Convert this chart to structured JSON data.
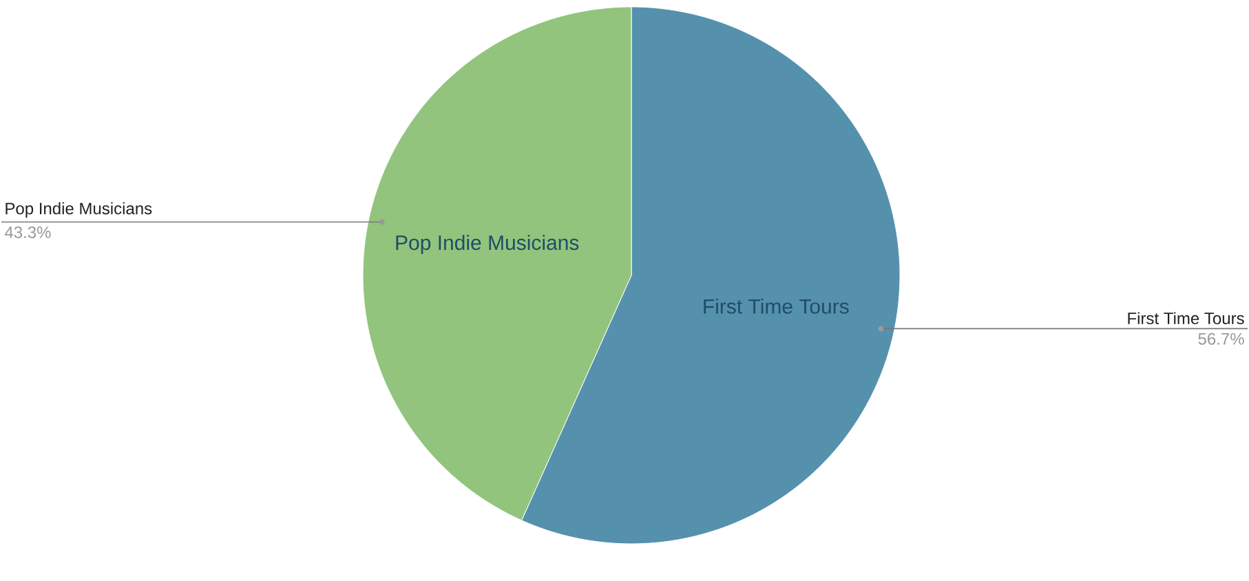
{
  "chart_data": {
    "type": "pie",
    "categories": [
      "First Time Tours",
      "Pop Indie Musicians"
    ],
    "values": [
      56.7,
      43.3
    ],
    "colors": [
      "#5591ad",
      "#92c47d"
    ],
    "value_labels": [
      "56.7%",
      "43.3%"
    ]
  }
}
